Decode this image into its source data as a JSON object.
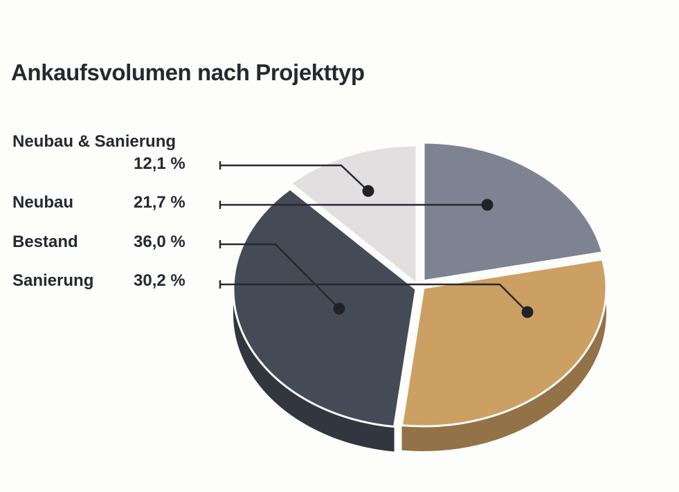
{
  "chart_data": {
    "type": "pie",
    "title": "Ankaufsvolumen nach Projekttyp",
    "slices": [
      {
        "label": "Neubau & Sanierung",
        "value": 12.1,
        "value_label": "12,1 %",
        "color": "#e2dfe1"
      },
      {
        "label": "Neubau",
        "value": 21.7,
        "value_label": "21,7 %",
        "color": "#7d8390"
      },
      {
        "label": "Bestand",
        "value": 36.0,
        "value_label": "36,0 %",
        "color": "#454b56"
      },
      {
        "label": "Sanierung",
        "value": 30.2,
        "value_label": "30,2 %",
        "color": "#cc9f62"
      }
    ],
    "legend_position": "left"
  }
}
